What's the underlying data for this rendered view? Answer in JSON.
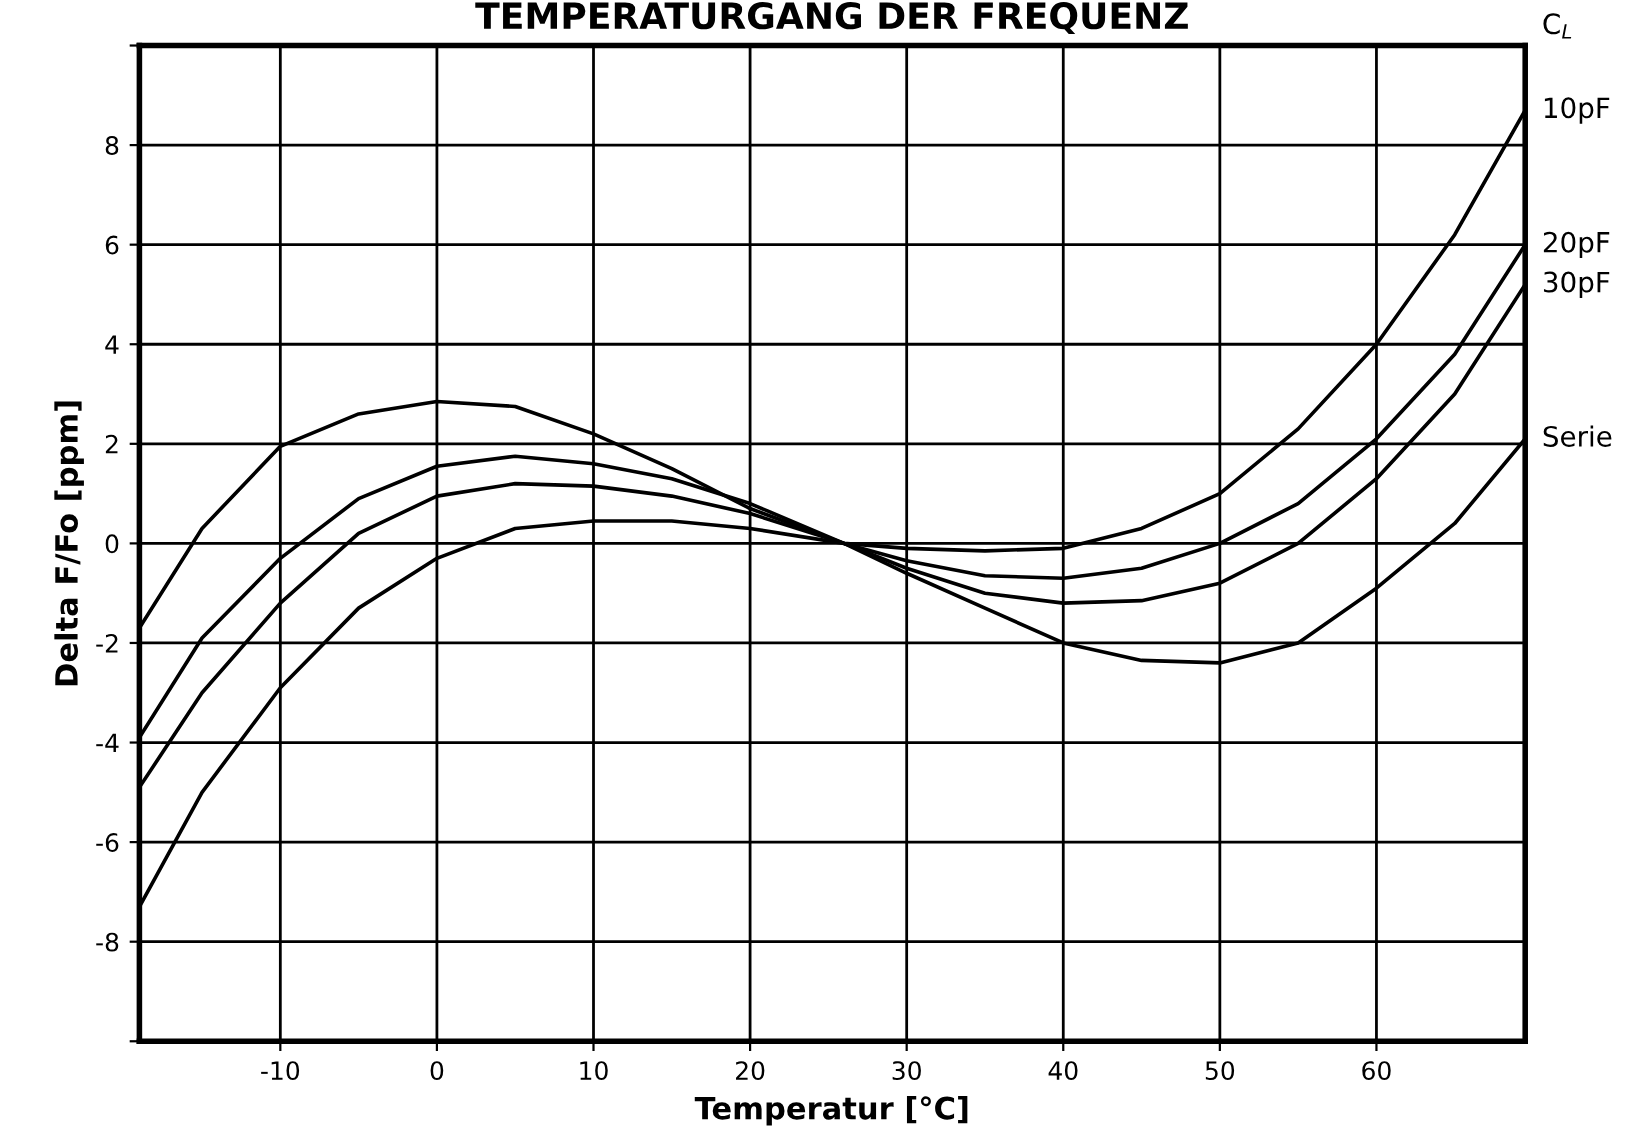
{
  "chart_data": {
    "type": "line",
    "title": "TEMPERATURGANG DER FREQUENZ",
    "xlabel": "Temperatur [°C]",
    "ylabel": "Delta F/Fo [ppm]",
    "legend_title": "C$_{L}$",
    "xlim": [
      -19,
      69.5
    ],
    "ylim": [
      -10,
      10
    ],
    "xticks": [
      -10,
      0,
      10,
      20,
      30,
      40,
      50,
      60
    ],
    "yticks": [
      {
        "value": -10,
        "label": null
      },
      -8,
      -6,
      -4,
      -2,
      0,
      2,
      4,
      6,
      8,
      {
        "value": 10,
        "label": null
      }
    ],
    "grid": true,
    "legend": false,
    "marker": "none",
    "line_style": "solid",
    "series": [
      {
        "name": "10pF",
        "color": "#000000",
        "x": [
          -19,
          -15,
          -10,
          -5,
          0,
          5,
          10,
          15,
          20,
          26,
          30,
          35,
          40,
          45,
          50,
          55,
          60,
          65,
          69.5
        ],
        "values": [
          -7.3,
          -5.0,
          -2.9,
          -1.3,
          -0.3,
          0.3,
          0.45,
          0.45,
          0.3,
          0,
          -0.1,
          -0.15,
          -0.1,
          0.3,
          1.0,
          2.3,
          4.0,
          6.2,
          8.7
        ]
      },
      {
        "name": "20pF",
        "color": "#000000",
        "x": [
          -19,
          -15,
          -10,
          -5,
          0,
          5,
          10,
          15,
          20,
          26,
          30,
          35,
          40,
          45,
          50,
          55,
          60,
          65,
          69.5
        ],
        "values": [
          -4.9,
          -3.0,
          -1.2,
          0.2,
          0.95,
          1.2,
          1.15,
          0.95,
          0.6,
          0,
          -0.35,
          -0.65,
          -0.7,
          -0.5,
          0,
          0.8,
          2.1,
          3.8,
          6.0
        ]
      },
      {
        "name": "30pF",
        "color": "#000000",
        "x": [
          -19,
          -15,
          -10,
          -5,
          0,
          5,
          10,
          15,
          20,
          26,
          30,
          35,
          40,
          45,
          50,
          55,
          60,
          65,
          69.5
        ],
        "values": [
          -3.9,
          -1.9,
          -0.3,
          0.9,
          1.55,
          1.75,
          1.6,
          1.3,
          0.8,
          0,
          -0.5,
          -1.0,
          -1.2,
          -1.15,
          -0.8,
          0,
          1.3,
          3.0,
          5.2
        ]
      },
      {
        "name": "Serie",
        "color": "#000000",
        "x": [
          -19,
          -15,
          -10,
          -5,
          0,
          5,
          10,
          15,
          20,
          26,
          30,
          35,
          40,
          45,
          50,
          55,
          60,
          65,
          69.5
        ],
        "values": [
          -1.7,
          0.3,
          1.95,
          2.6,
          2.85,
          2.75,
          2.2,
          1.5,
          0.7,
          0,
          -0.6,
          -1.3,
          -2.0,
          -2.35,
          -2.4,
          -2.0,
          -0.9,
          0.4,
          2.1
        ]
      }
    ]
  }
}
